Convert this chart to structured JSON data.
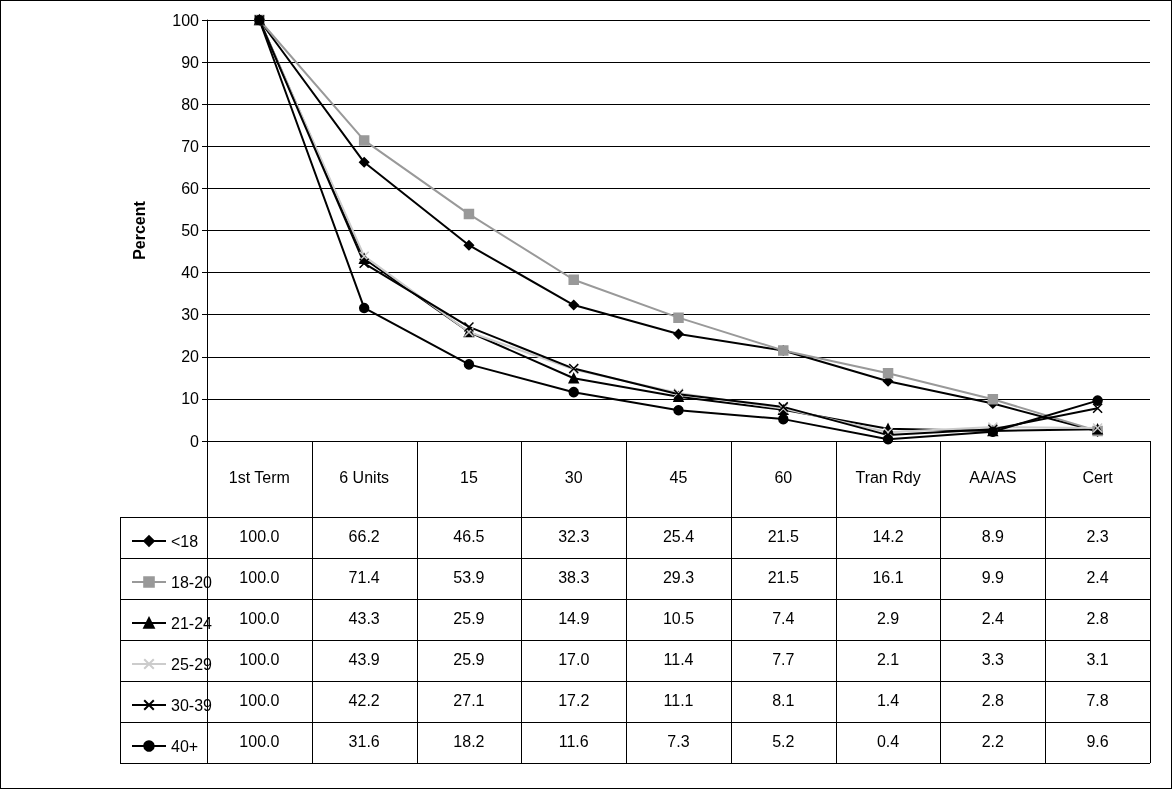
{
  "chart_data": {
    "type": "line",
    "ylabel": "Percent",
    "categories": [
      "1st Term",
      "6 Units",
      "15",
      "30",
      "45",
      "60",
      "Tran Rdy",
      "AA/AS",
      "Cert"
    ],
    "series": [
      {
        "name": "<18",
        "color": "#000000",
        "marker": "diamond",
        "values": [
          100.0,
          66.2,
          46.5,
          32.3,
          25.4,
          21.5,
          14.2,
          8.9,
          2.3
        ],
        "value_labels": [
          "100.0",
          "66.2",
          "46.5",
          "32.3",
          "25.4",
          "21.5",
          "14.2",
          "8.9",
          "2.3"
        ]
      },
      {
        "name": "18-20",
        "color": "#999999",
        "marker": "square",
        "values": [
          100.0,
          71.4,
          53.9,
          38.3,
          29.3,
          21.5,
          16.1,
          9.9,
          2.4
        ],
        "value_labels": [
          "100.0",
          "71.4",
          "53.9",
          "38.3",
          "29.3",
          "21.5",
          "16.1",
          "9.9",
          "2.4"
        ]
      },
      {
        "name": "21-24",
        "color": "#000000",
        "marker": "triangle",
        "values": [
          100.0,
          43.3,
          25.9,
          14.9,
          10.5,
          7.4,
          2.9,
          2.4,
          2.8
        ],
        "value_labels": [
          "100.0",
          "43.3",
          "25.9",
          "14.9",
          "10.5",
          "7.4",
          "2.9",
          "2.4",
          "2.8"
        ]
      },
      {
        "name": "25-29",
        "color": "#cccccc",
        "marker": "cross",
        "values": [
          100.0,
          43.9,
          25.9,
          17.0,
          11.4,
          7.7,
          2.1,
          3.3,
          3.1
        ],
        "value_labels": [
          "100.0",
          "43.9",
          "25.9",
          "17.0",
          "11.4",
          "7.7",
          "2.1",
          "3.3",
          "3.1"
        ]
      },
      {
        "name": "30-39",
        "color": "#000000",
        "marker": "cross",
        "values": [
          100.0,
          42.2,
          27.1,
          17.2,
          11.1,
          8.1,
          1.4,
          2.8,
          7.8
        ],
        "value_labels": [
          "100.0",
          "42.2",
          "27.1",
          "17.2",
          "11.1",
          "8.1",
          "1.4",
          "2.8",
          "7.8"
        ]
      },
      {
        "name": "40+",
        "color": "#000000",
        "marker": "circle",
        "values": [
          100.0,
          31.6,
          18.2,
          11.6,
          7.3,
          5.2,
          0.4,
          2.2,
          9.6
        ],
        "value_labels": [
          "100.0",
          "31.6",
          "18.2",
          "11.6",
          "7.3",
          "5.2",
          "0.4",
          "2.2",
          "9.6"
        ]
      }
    ],
    "ylim": [
      0,
      100
    ],
    "yticks": [
      0,
      10,
      20,
      30,
      40,
      50,
      60,
      70,
      80,
      90,
      100
    ],
    "grid": "y",
    "legend": "bottom left",
    "line_style": "solid"
  }
}
